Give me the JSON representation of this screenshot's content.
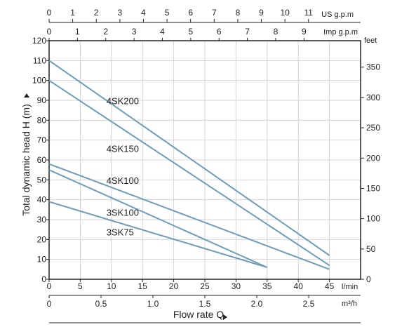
{
  "chart_data": {
    "type": "line",
    "xlabel": "Flow rate Q",
    "ylabel": "Total dynamic head H (m)",
    "y_right_unit": "feet",
    "x_unit_lpm": "l/min",
    "x_unit_m3h": "m³/h",
    "x_unit_us_gpm": "US g.p.m",
    "x_unit_imp_gpm": "Imp g.p.m",
    "xlim_lpm": [
      0,
      50
    ],
    "ylim_m": [
      0,
      120
    ],
    "grid": true,
    "x_ticks_lpm": [
      "0",
      "5",
      "10",
      "15",
      "20",
      "25",
      "30",
      "35",
      "40",
      "45"
    ],
    "x_ticks_m3h": [
      "0",
      "0.5",
      "1.0",
      "1.5",
      "2.0",
      "2.5"
    ],
    "x_ticks_us_gpm": [
      "0",
      "1",
      "2",
      "3",
      "4",
      "5",
      "6",
      "7",
      "8",
      "9",
      "10",
      "11"
    ],
    "x_ticks_imp_gpm": [
      "0",
      "1",
      "2",
      "3",
      "4",
      "5",
      "6",
      "7",
      "8",
      "9"
    ],
    "y_ticks_m": [
      "0",
      "10",
      "20",
      "30",
      "40",
      "50",
      "60",
      "70",
      "80",
      "90",
      "100",
      "110",
      "120"
    ],
    "y_ticks_feet": [
      "0",
      "50",
      "100",
      "150",
      "200",
      "250",
      "300",
      "350"
    ],
    "series": [
      {
        "name": "4SK200",
        "x": [
          0,
          45
        ],
        "y": [
          110,
          12
        ]
      },
      {
        "name": "4SK150",
        "x": [
          0,
          45
        ],
        "y": [
          100,
          7
        ]
      },
      {
        "name": "4SK100",
        "x": [
          0,
          45
        ],
        "y": [
          58,
          5
        ]
      },
      {
        "name": "3SK100",
        "x": [
          0,
          35
        ],
        "y": [
          55,
          6
        ]
      },
      {
        "name": "3SK75",
        "x": [
          0,
          35
        ],
        "y": [
          39,
          6
        ]
      }
    ],
    "series_label_anchor": [
      {
        "x": 9.2,
        "y": 88
      },
      {
        "x": 9.2,
        "y": 64
      },
      {
        "x": 9.2,
        "y": 48
      },
      {
        "x": 9.2,
        "y": 32
      },
      {
        "x": 9.2,
        "y": 22
      }
    ],
    "line_color": "#6f9cb8"
  }
}
